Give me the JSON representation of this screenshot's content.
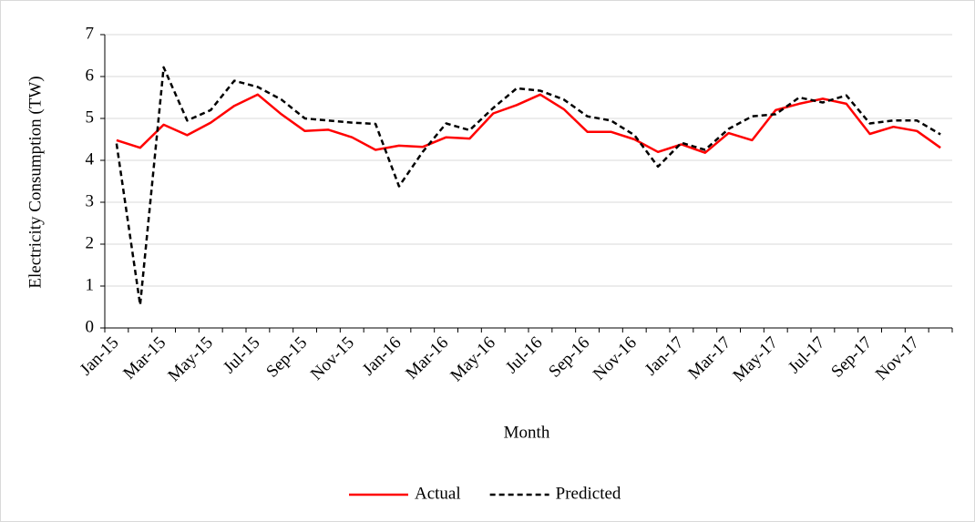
{
  "chart_data": {
    "type": "line",
    "xlabel": "Month",
    "ylabel": "Electricity Consumption (TW)",
    "categories": [
      "Jan-15",
      null,
      "Mar-15",
      null,
      "May-15",
      null,
      "Jul-15",
      null,
      "Sep-15",
      null,
      "Nov-15",
      null,
      "Jan-16",
      null,
      "Mar-16",
      null,
      "May-16",
      null,
      "Jul-16",
      null,
      "Sep-16",
      null,
      "Nov-16",
      null,
      "Jan-17",
      null,
      "Mar-17",
      null,
      "May-17",
      null,
      "Jul-17",
      null,
      "Sep-17",
      null,
      "Nov-17",
      null
    ],
    "series": [
      {
        "name": "Actual",
        "color": "#ff0000",
        "dash": false,
        "values": [
          4.48,
          4.3,
          4.85,
          4.6,
          4.9,
          5.3,
          5.57,
          5.1,
          4.7,
          4.73,
          4.55,
          4.25,
          4.35,
          4.32,
          4.55,
          4.52,
          5.12,
          5.32,
          5.57,
          5.22,
          4.68,
          4.68,
          4.5,
          4.2,
          4.38,
          4.18,
          4.65,
          4.48,
          5.2,
          5.35,
          5.47,
          5.35,
          4.63,
          4.8,
          4.7,
          4.3
        ]
      },
      {
        "name": "Predicted",
        "color": "#000000",
        "dash": true,
        "values": [
          4.4,
          0.55,
          6.22,
          4.95,
          5.2,
          5.9,
          5.75,
          5.45,
          5.0,
          4.95,
          4.9,
          4.87,
          3.38,
          4.2,
          4.88,
          4.72,
          5.25,
          5.72,
          5.66,
          5.45,
          5.05,
          4.95,
          4.6,
          3.85,
          4.42,
          4.25,
          4.75,
          5.05,
          5.1,
          5.5,
          5.38,
          5.55,
          4.88,
          4.95,
          4.95,
          4.62
        ]
      }
    ],
    "ylim": [
      0,
      7
    ],
    "yticks": [
      0,
      1,
      2,
      3,
      4,
      5,
      6,
      7
    ],
    "grid": true,
    "legend": "bottom"
  }
}
